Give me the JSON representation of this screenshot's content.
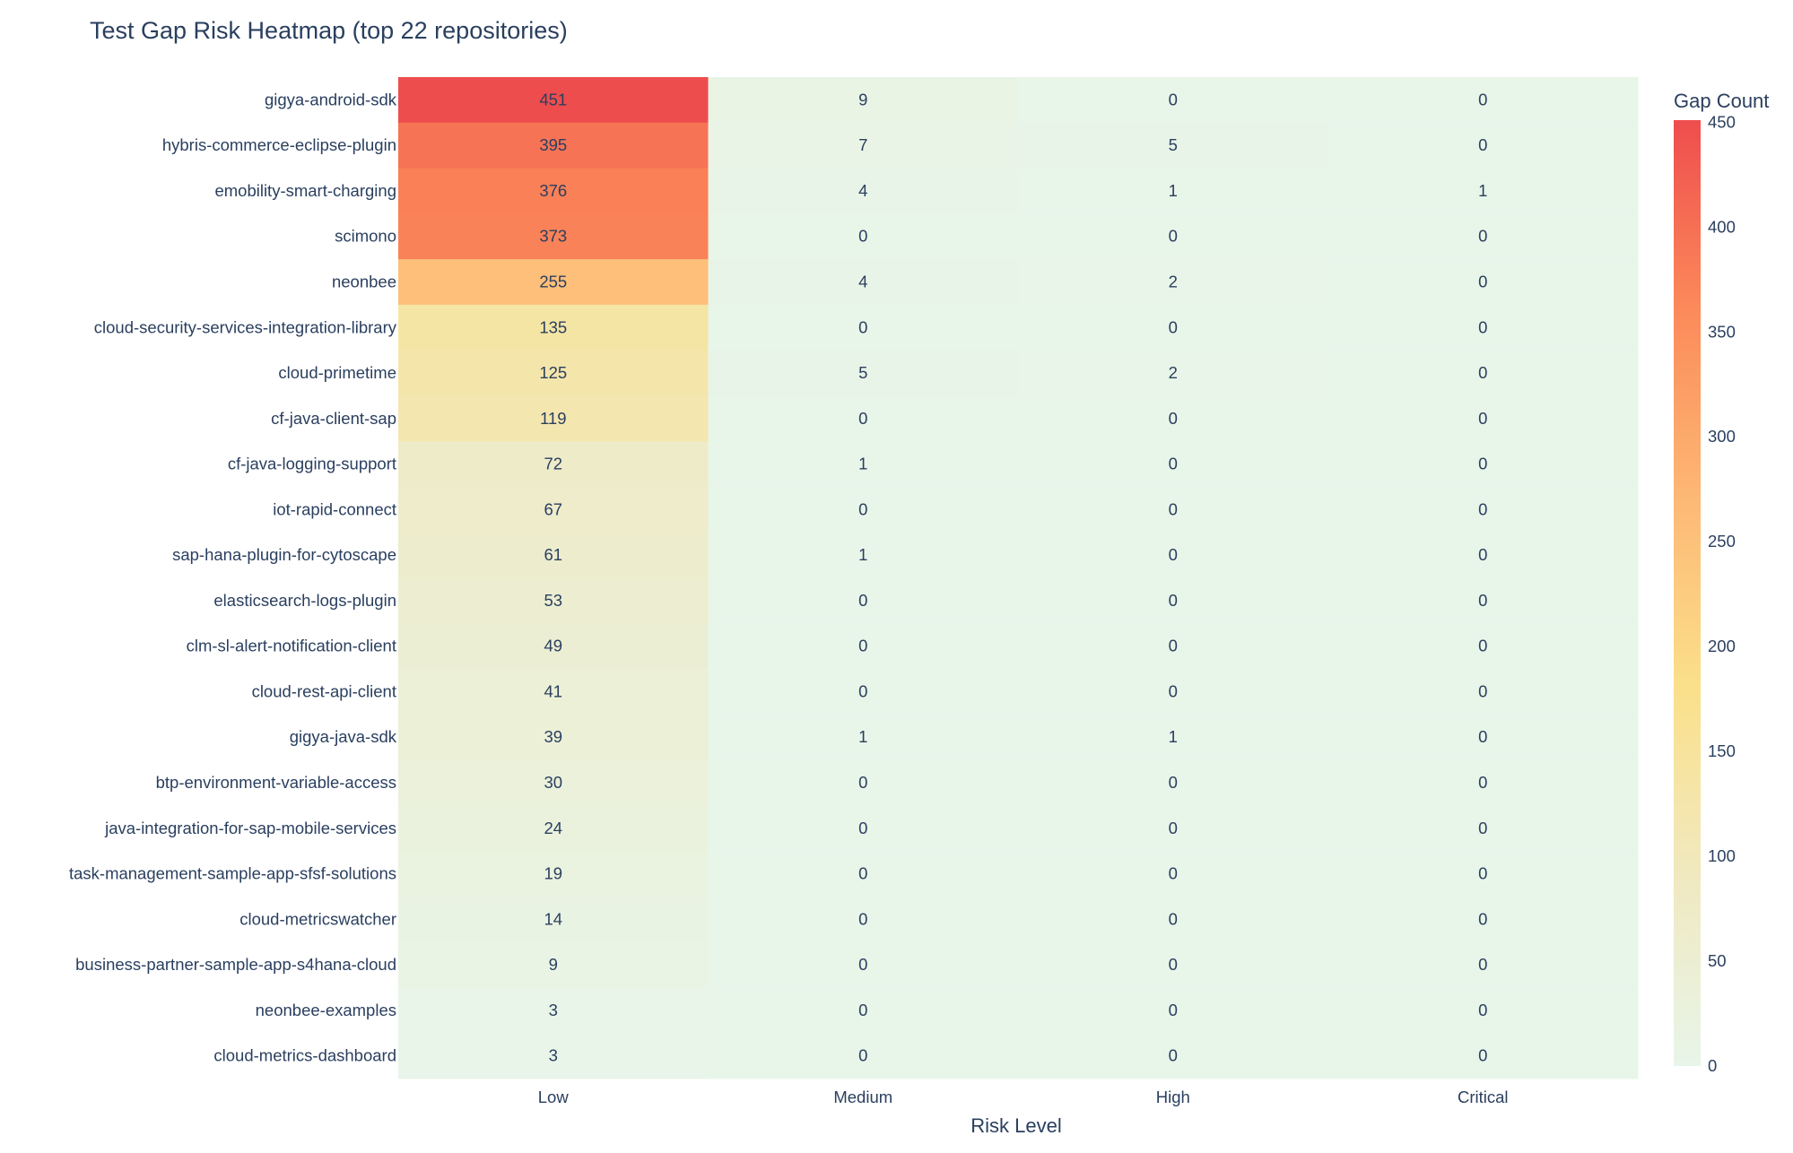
{
  "chart_data": {
    "type": "heatmap",
    "title": "Test Gap Risk Heatmap (top 22 repositories)",
    "xlabel": "Risk Level",
    "ylabel": "",
    "x": [
      "Low",
      "Medium",
      "High",
      "Critical"
    ],
    "y": [
      "gigya-android-sdk",
      "hybris-commerce-eclipse-plugin",
      "emobility-smart-charging",
      "scimono",
      "neonbee",
      "cloud-security-services-integration-library",
      "cloud-primetime",
      "cf-java-client-sap",
      "cf-java-logging-support",
      "iot-rapid-connect",
      "sap-hana-plugin-for-cytoscape",
      "elasticsearch-logs-plugin",
      "clm-sl-alert-notification-client",
      "cloud-rest-api-client",
      "gigya-java-sdk",
      "btp-environment-variable-access",
      "java-integration-for-sap-mobile-services",
      "task-management-sample-app-sfsf-solutions",
      "cloud-metricswatcher",
      "business-partner-sample-app-s4hana-cloud",
      "neonbee-examples",
      "cloud-metrics-dashboard"
    ],
    "z": [
      [
        451,
        9,
        0,
        0
      ],
      [
        395,
        7,
        5,
        0
      ],
      [
        376,
        4,
        1,
        1
      ],
      [
        373,
        0,
        0,
        0
      ],
      [
        255,
        4,
        2,
        0
      ],
      [
        135,
        0,
        0,
        0
      ],
      [
        125,
        5,
        2,
        0
      ],
      [
        119,
        0,
        0,
        0
      ],
      [
        72,
        1,
        0,
        0
      ],
      [
        67,
        0,
        0,
        0
      ],
      [
        61,
        1,
        0,
        0
      ],
      [
        53,
        0,
        0,
        0
      ],
      [
        49,
        0,
        0,
        0
      ],
      [
        41,
        0,
        0,
        0
      ],
      [
        39,
        1,
        1,
        0
      ],
      [
        30,
        0,
        0,
        0
      ],
      [
        24,
        0,
        0,
        0
      ],
      [
        19,
        0,
        0,
        0
      ],
      [
        14,
        0,
        0,
        0
      ],
      [
        9,
        0,
        0,
        0
      ],
      [
        3,
        0,
        0,
        0
      ],
      [
        3,
        0,
        0,
        0
      ]
    ],
    "colorbar": {
      "title": "Gap Count",
      "range": [
        0,
        451
      ],
      "ticks": [
        0,
        50,
        100,
        150,
        200,
        250,
        300,
        350,
        400,
        450
      ],
      "colorscale": [
        "#e8f5e9",
        "#f0e9c0",
        "#fbe08a",
        "#fdb875",
        "#fc8a5a",
        "#ee4d4d"
      ]
    }
  }
}
